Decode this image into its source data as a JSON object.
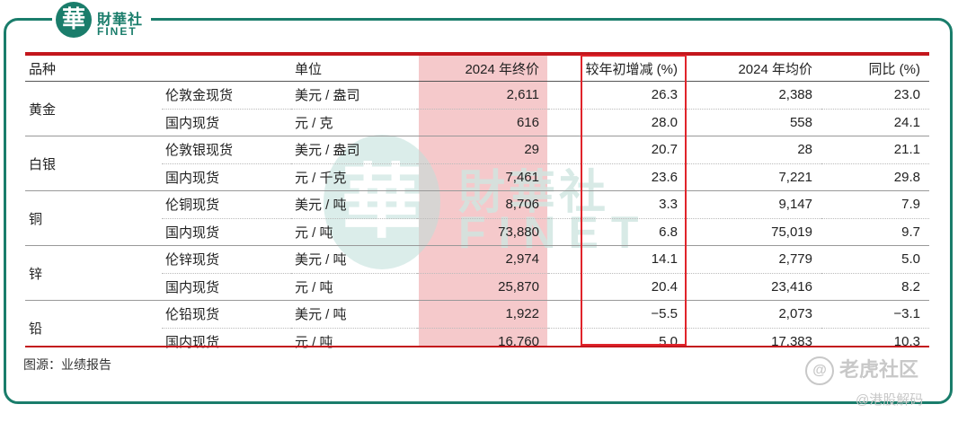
{
  "logo": {
    "seal": "華",
    "cn": "財華社",
    "en": "FINET"
  },
  "watermark": {
    "seal": "華",
    "cn": "財華社",
    "en": "FINET"
  },
  "table": {
    "headers": {
      "variety": "品种",
      "unit": "单位",
      "close_2024": "2024 年终价",
      "ytd_change": "较年初增减 (%)",
      "avg_2024": "2024 年均价",
      "yoy": "同比 (%)"
    },
    "groups": [
      {
        "name": "黄金",
        "rows": [
          {
            "market": "伦敦金现货",
            "unit": "美元 / 盎司",
            "close": "2,611",
            "ytd": "26.3",
            "avg": "2,388",
            "yoy": "23.0"
          },
          {
            "market": "国内现货",
            "unit": "元 / 克",
            "close": "616",
            "ytd": "28.0",
            "avg": "558",
            "yoy": "24.1"
          }
        ]
      },
      {
        "name": "白银",
        "rows": [
          {
            "market": "伦敦银现货",
            "unit": "美元 / 盎司",
            "close": "29",
            "ytd": "20.7",
            "avg": "28",
            "yoy": "21.1"
          },
          {
            "market": "国内现货",
            "unit": "元 / 千克",
            "close": "7,461",
            "ytd": "23.6",
            "avg": "7,221",
            "yoy": "29.8"
          }
        ]
      },
      {
        "name": "铜",
        "rows": [
          {
            "market": "伦铜现货",
            "unit": "美元 / 吨",
            "close": "8,706",
            "ytd": "3.3",
            "avg": "9,147",
            "yoy": "7.9"
          },
          {
            "market": "国内现货",
            "unit": "元 / 吨",
            "close": "73,880",
            "ytd": "6.8",
            "avg": "75,019",
            "yoy": "9.7"
          }
        ]
      },
      {
        "name": "锌",
        "rows": [
          {
            "market": "伦锌现货",
            "unit": "美元 / 吨",
            "close": "2,974",
            "ytd": "14.1",
            "avg": "2,779",
            "yoy": "5.0"
          },
          {
            "market": "国内现货",
            "unit": "元 / 吨",
            "close": "25,870",
            "ytd": "20.4",
            "avg": "23,416",
            "yoy": "8.2"
          }
        ]
      },
      {
        "name": "铅",
        "rows": [
          {
            "market": "伦铅现货",
            "unit": "美元 / 吨",
            "close": "1,922",
            "ytd": "−5.5",
            "avg": "2,073",
            "yoy": "−3.1"
          },
          {
            "market": "国内现货",
            "unit": "元 / 吨",
            "close": "16,760",
            "ytd": "5.0",
            "avg": "17,383",
            "yoy": "10.3"
          }
        ]
      }
    ]
  },
  "source": "图源：业绩报告",
  "tiger": {
    "icon_text": "@",
    "label": "老虎社区"
  },
  "handle": "@港股解码",
  "colors": {
    "brand_green": "#1a7d6b",
    "highlight_pink": "#f5c9cb",
    "box_red": "#e0242b",
    "rule_red": "#c3161c"
  }
}
